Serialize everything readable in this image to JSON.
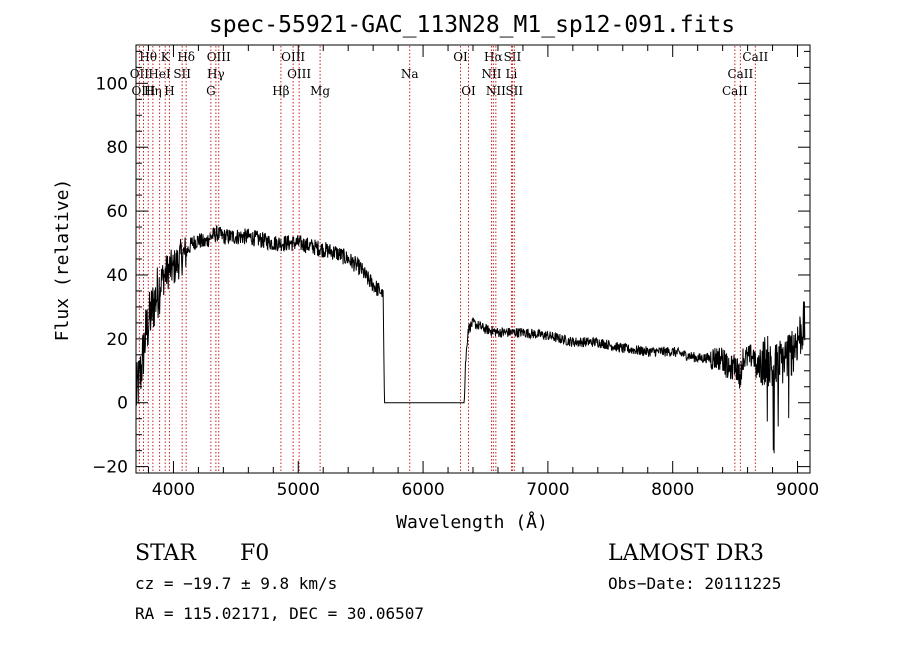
{
  "chart_data": {
    "type": "line",
    "title": "spec-55921-GAC_113N28_M1_sp12-091.fits",
    "xlabel": "Wavelength (Å)",
    "ylabel": "Flux (relative)",
    "xlim": [
      3700,
      9100
    ],
    "ylim": [
      -22,
      112
    ],
    "x_ticks": [
      4000,
      5000,
      6000,
      7000,
      8000,
      9000
    ],
    "y_ticks": [
      -20,
      0,
      20,
      40,
      60,
      80,
      100
    ],
    "y_tick_labels": [
      "−20",
      "0",
      "20",
      "40",
      "60",
      "80",
      "100"
    ],
    "grid": false,
    "series": [
      {
        "name": "flux",
        "x": [
          3700,
          3740,
          3780,
          3820,
          3860,
          3900,
          3930,
          3970,
          4000,
          4050,
          4100,
          4150,
          4200,
          4250,
          4300,
          4350,
          4400,
          4500,
          4600,
          4700,
          4800,
          4850,
          4900,
          5000,
          5100,
          5200,
          5300,
          5400,
          5500,
          5550,
          5600,
          5650,
          5680,
          5690,
          6000,
          6300,
          6330,
          6340,
          6360,
          6400,
          6500,
          6600,
          6700,
          6800,
          7000,
          7200,
          7400,
          7600,
          7800,
          8000,
          8200,
          8400,
          8450,
          8500,
          8540,
          8560,
          8600,
          8650,
          8670,
          8700,
          8750,
          8800,
          8850,
          8900,
          8950,
          9000,
          9050
        ],
        "y": [
          2,
          10,
          22,
          28,
          33,
          38,
          40,
          42,
          42,
          45,
          47,
          50,
          51,
          50,
          52,
          53,
          52,
          52,
          52,
          51,
          50,
          50,
          50,
          50,
          49,
          48,
          47,
          45,
          42,
          39,
          37,
          35,
          34,
          0,
          0,
          0,
          0,
          12,
          23,
          25,
          23,
          22,
          22,
          22,
          21,
          19,
          19,
          17,
          16,
          16,
          14,
          14,
          10,
          12,
          8,
          14,
          14,
          15,
          10,
          12,
          14,
          10,
          12,
          14,
          16,
          20,
          24
        ]
      }
    ],
    "line_markers": [
      {
        "label": "Hθ",
        "wavelength": 3798,
        "row": 0
      },
      {
        "label": "OII",
        "wavelength": 3727,
        "row": 1
      },
      {
        "label": "OIII",
        "wavelength": 3760,
        "row": 2
      },
      {
        "label": "Hη",
        "wavelength": 3835,
        "row": 2
      },
      {
        "label": "K",
        "wavelength": 3934,
        "row": 0
      },
      {
        "label": "HeI",
        "wavelength": 3889,
        "row": 1
      },
      {
        "label": "SII",
        "wavelength": 4070,
        "row": 1
      },
      {
        "label": "H",
        "wavelength": 3968,
        "row": 2
      },
      {
        "label": "Hδ",
        "wavelength": 4102,
        "row": 0
      },
      {
        "label": "OIII",
        "wavelength": 4363,
        "row": 0
      },
      {
        "label": "Hγ",
        "wavelength": 4340,
        "row": 1
      },
      {
        "label": "G",
        "wavelength": 4300,
        "row": 2
      },
      {
        "label": "OIII",
        "wavelength": 4959,
        "row": 0
      },
      {
        "label": "OIII",
        "wavelength": 5007,
        "row": 1
      },
      {
        "label": "Hβ",
        "wavelength": 4861,
        "row": 2
      },
      {
        "label": "Mg",
        "wavelength": 5175,
        "row": 2
      },
      {
        "label": "Na",
        "wavelength": 5893,
        "row": 1
      },
      {
        "label": "OI",
        "wavelength": 6300,
        "row": 0
      },
      {
        "label": "OI",
        "wavelength": 6364,
        "row": 2
      },
      {
        "label": "Hα",
        "wavelength": 6563,
        "row": 0
      },
      {
        "label": "SII",
        "wavelength": 6716,
        "row": 0
      },
      {
        "label": "NII",
        "wavelength": 6548,
        "row": 1
      },
      {
        "label": "Li",
        "wavelength": 6708,
        "row": 1
      },
      {
        "label": "NII",
        "wavelength": 6583,
        "row": 2
      },
      {
        "label": "SII",
        "wavelength": 6731,
        "row": 2
      },
      {
        "label": "CaII",
        "wavelength": 8662,
        "row": 0
      },
      {
        "label": "CaII",
        "wavelength": 8542,
        "row": 1
      },
      {
        "label": "CaII",
        "wavelength": 8498,
        "row": 2
      }
    ]
  },
  "info": {
    "object_class": "STAR",
    "subclass": "F0",
    "survey": "LAMOST DR3",
    "redshift": "cz = −19.7 ± 9.8 km/s",
    "obs_date": "Obs−Date: 20111225",
    "coords": "RA = 115.02171, DEC =  30.06507"
  }
}
